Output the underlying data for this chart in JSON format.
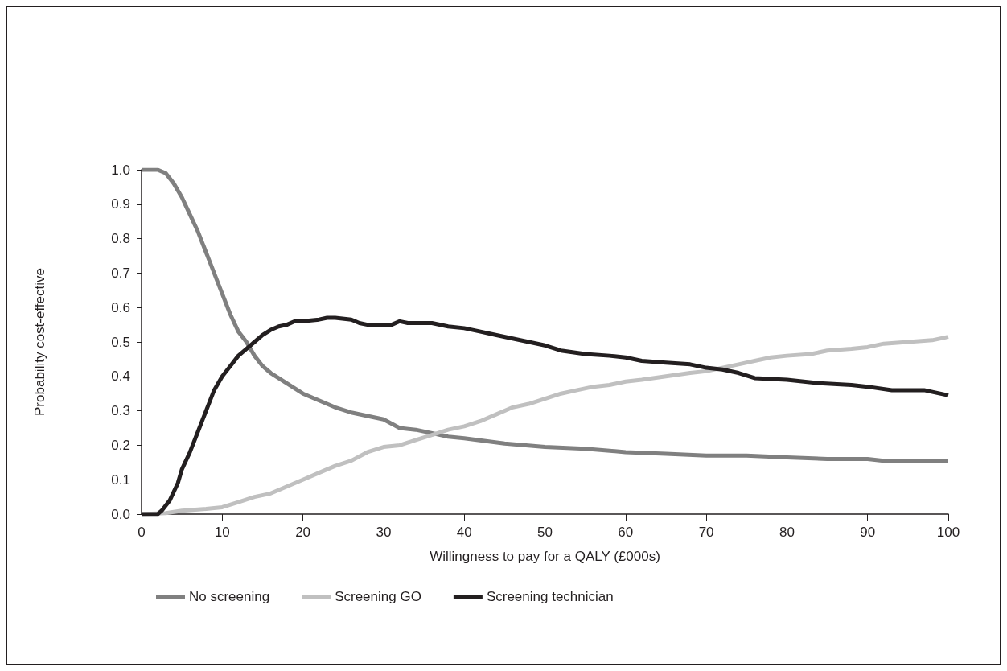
{
  "chart_data": {
    "type": "line",
    "xlabel": "Willingness to pay for a QALY (£000s)",
    "ylabel": "Probability cost-effective",
    "xlim": [
      0,
      100
    ],
    "xticks": [
      0,
      10,
      20,
      30,
      40,
      50,
      60,
      70,
      80,
      90,
      100
    ],
    "ylim": [
      0,
      1
    ],
    "yticks": [
      {
        "value": 0,
        "label": "0.0"
      },
      {
        "value": 0.1,
        "label": "0.1"
      },
      {
        "value": 0.2,
        "label": "0.2"
      },
      {
        "value": 0.3,
        "label": "0.3"
      },
      {
        "value": 0.4,
        "label": "0.4"
      },
      {
        "value": 0.5,
        "label": "0.5"
      },
      {
        "value": 0.6,
        "label": "0.6"
      },
      {
        "value": 0.7,
        "label": "0.7"
      },
      {
        "value": 0.8,
        "label": "0.8"
      },
      {
        "value": 0.9,
        "label": "0.9"
      },
      {
        "value": 1,
        "label": "1.0"
      }
    ],
    "grid": false,
    "legend": "bottom",
    "marker": "none",
    "line_style": "solid",
    "series": [
      {
        "name": "No screening",
        "color": "#808080",
        "x": [
          0,
          2,
          3,
          4,
          5,
          6,
          7,
          8,
          9,
          10,
          11,
          12,
          13,
          14,
          15,
          16,
          18,
          20,
          22,
          24,
          26,
          28,
          30,
          32,
          34,
          36,
          38,
          40,
          45,
          50,
          55,
          60,
          65,
          70,
          75,
          80,
          85,
          90,
          92,
          100
        ],
        "values": [
          1.0,
          1.0,
          0.99,
          0.96,
          0.92,
          0.87,
          0.82,
          0.76,
          0.7,
          0.64,
          0.58,
          0.53,
          0.5,
          0.46,
          0.43,
          0.41,
          0.38,
          0.35,
          0.33,
          0.31,
          0.295,
          0.285,
          0.275,
          0.25,
          0.245,
          0.235,
          0.225,
          0.22,
          0.205,
          0.195,
          0.19,
          0.18,
          0.175,
          0.17,
          0.17,
          0.165,
          0.16,
          0.16,
          0.155,
          0.155
        ]
      },
      {
        "name": "Screening GO",
        "color": "#c0c0c0",
        "x": [
          0,
          3,
          5,
          8,
          10,
          12,
          14,
          16,
          18,
          20,
          22,
          24,
          26,
          28,
          30,
          32,
          34,
          36,
          38,
          40,
          42,
          44,
          46,
          48,
          50,
          52,
          54,
          56,
          58,
          60,
          62,
          65,
          68,
          70,
          72,
          74,
          76,
          78,
          80,
          83,
          85,
          88,
          90,
          92,
          95,
          98,
          100
        ],
        "values": [
          0,
          0.003,
          0.01,
          0.015,
          0.02,
          0.035,
          0.05,
          0.06,
          0.08,
          0.1,
          0.12,
          0.14,
          0.155,
          0.18,
          0.195,
          0.2,
          0.215,
          0.23,
          0.245,
          0.255,
          0.27,
          0.29,
          0.31,
          0.32,
          0.335,
          0.35,
          0.36,
          0.37,
          0.375,
          0.385,
          0.39,
          0.4,
          0.41,
          0.415,
          0.425,
          0.435,
          0.445,
          0.455,
          0.46,
          0.465,
          0.475,
          0.48,
          0.485,
          0.495,
          0.5,
          0.505,
          0.515
        ]
      },
      {
        "name": "Screening technician",
        "color": "#231f20",
        "x": [
          0,
          2,
          2.5,
          3.5,
          4.5,
          5,
          6,
          7,
          8,
          9,
          10,
          11,
          12,
          13,
          14,
          15,
          16,
          17,
          18,
          19,
          20,
          22,
          23,
          24,
          26,
          27,
          28,
          31,
          32,
          33,
          36,
          38,
          40,
          42,
          44,
          46,
          48,
          50,
          52,
          55,
          58,
          60,
          62,
          65,
          68,
          70,
          72,
          74,
          76,
          80,
          84,
          88,
          90,
          93,
          97,
          100
        ],
        "values": [
          0,
          0,
          0.01,
          0.04,
          0.09,
          0.13,
          0.18,
          0.24,
          0.3,
          0.36,
          0.4,
          0.43,
          0.46,
          0.48,
          0.5,
          0.52,
          0.535,
          0.545,
          0.55,
          0.56,
          0.56,
          0.565,
          0.57,
          0.57,
          0.565,
          0.555,
          0.55,
          0.55,
          0.56,
          0.555,
          0.555,
          0.545,
          0.54,
          0.53,
          0.52,
          0.51,
          0.5,
          0.49,
          0.475,
          0.465,
          0.46,
          0.455,
          0.445,
          0.44,
          0.435,
          0.425,
          0.42,
          0.41,
          0.395,
          0.39,
          0.38,
          0.375,
          0.37,
          0.36,
          0.36,
          0.345
        ]
      }
    ]
  }
}
